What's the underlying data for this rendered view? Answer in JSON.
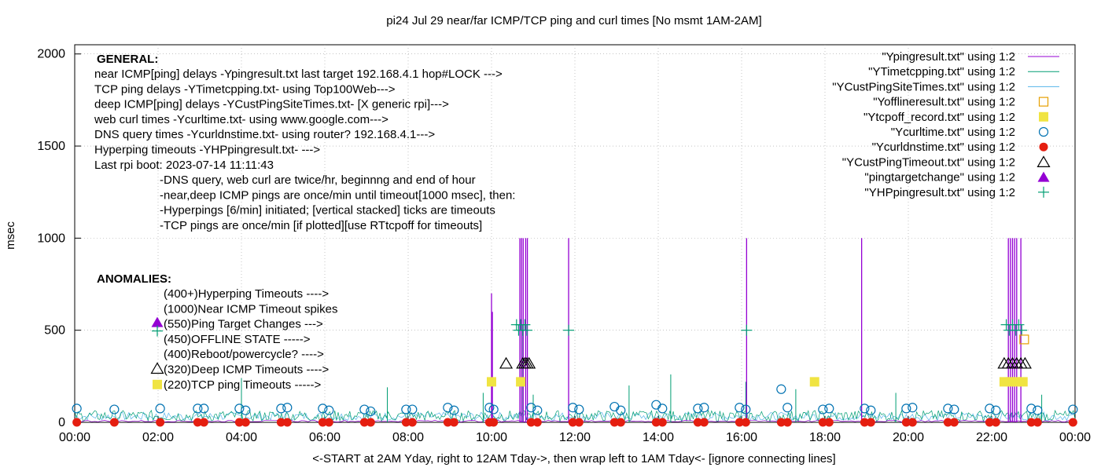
{
  "chart_data": {
    "type": "line",
    "title": "pi24 Jul 29  near/far ICMP/TCP ping and curl times [No msmt 1AM-2AM]",
    "xlabel": "<-START at 2AM Yday, right to 12AM Tday->, then wrap left to 1AM Tday<- [ignore connecting lines]",
    "ylabel": "msec",
    "xlim_hours": [
      0,
      24
    ],
    "ylim": [
      0,
      2050
    ],
    "x_ticks": [
      "00:00",
      "02:00",
      "04:00",
      "06:00",
      "08:00",
      "10:00",
      "12:00",
      "14:00",
      "16:00",
      "18:00",
      "20:00",
      "22:00",
      "00:00"
    ],
    "y_ticks": [
      "0",
      "500",
      "1000",
      "1500",
      "2000"
    ],
    "grid": true,
    "legend_placement": "top-right",
    "colors": {
      "ping": "#9400d3",
      "tcp": "#009e73",
      "cust": "#56b4e9",
      "offline": "#e69f00",
      "tcpoff": "#f0e442",
      "curl": "#0072b2",
      "dns": "#e51e10",
      "custTimeout": "#000000",
      "target": "#9400d3",
      "yhp": "#009e73"
    },
    "series": [
      {
        "name": "\"Ypingresult.txt\" using 1:2",
        "key": "ping",
        "marker": "line"
      },
      {
        "name": "\"YTimetcpping.txt\" using 1:2",
        "key": "tcp",
        "marker": "line"
      },
      {
        "name": "\"YCustPingSiteTimes.txt\" using 1:2",
        "key": "cust",
        "marker": "line"
      },
      {
        "name": "\"Yofflineresult.txt\" using 1:2",
        "key": "offline",
        "marker": "open-square"
      },
      {
        "name": "\"Ytcpoff_record.txt\" using 1:2",
        "key": "tcpoff",
        "marker": "filled-square"
      },
      {
        "name": "\"Ycurltime.txt\" using 1:2",
        "key": "curl",
        "marker": "open-circle"
      },
      {
        "name": "\"Ycurldnstime.txt\" using 1:2",
        "key": "dns",
        "marker": "filled-circle"
      },
      {
        "name": "\"YCustPingTimeout.txt\" using 1:2",
        "key": "custTimeout",
        "marker": "open-triangle"
      },
      {
        "name": "\"pingtargetchange\" using 1:2",
        "key": "target",
        "marker": "filled-triangle"
      },
      {
        "name": "\"YHPpingresult.txt\" using 1:2",
        "key": "yhp",
        "marker": "plus"
      }
    ],
    "ping_spikes": [
      {
        "x": 10.0,
        "y": 700
      },
      {
        "x": 10.02,
        "y": 600
      },
      {
        "x": 10.68,
        "y": 1000
      },
      {
        "x": 10.72,
        "y": 1000
      },
      {
        "x": 10.76,
        "y": 1000
      },
      {
        "x": 10.82,
        "y": 1000
      },
      {
        "x": 10.86,
        "y": 1000
      },
      {
        "x": 11.85,
        "y": 1000
      },
      {
        "x": 16.12,
        "y": 1000
      },
      {
        "x": 18.88,
        "y": 1000
      },
      {
        "x": 22.4,
        "y": 1000
      },
      {
        "x": 22.45,
        "y": 1000
      },
      {
        "x": 22.5,
        "y": 1000
      },
      {
        "x": 22.55,
        "y": 1000
      },
      {
        "x": 22.6,
        "y": 1000
      },
      {
        "x": 22.7,
        "y": 1000
      }
    ],
    "tcp_spikes": [
      {
        "x": 4.0,
        "y": 240
      },
      {
        "x": 7.5,
        "y": 190
      },
      {
        "x": 9.8,
        "y": 160
      },
      {
        "x": 10.75,
        "y": 500
      },
      {
        "x": 11.0,
        "y": 150
      },
      {
        "x": 13.3,
        "y": 200
      },
      {
        "x": 14.3,
        "y": 260
      },
      {
        "x": 16.1,
        "y": 220
      },
      {
        "x": 17.3,
        "y": 180
      },
      {
        "x": 19.7,
        "y": 160
      },
      {
        "x": 22.5,
        "y": 280
      },
      {
        "x": 23.2,
        "y": 150
      }
    ],
    "yhp_points": [
      {
        "x": 10.6,
        "y": 530
      },
      {
        "x": 10.65,
        "y": 500
      },
      {
        "x": 10.7,
        "y": 530
      },
      {
        "x": 10.75,
        "y": 500
      },
      {
        "x": 10.8,
        "y": 530
      },
      {
        "x": 10.85,
        "y": 500
      },
      {
        "x": 11.85,
        "y": 500
      },
      {
        "x": 16.12,
        "y": 500
      },
      {
        "x": 22.35,
        "y": 530
      },
      {
        "x": 22.42,
        "y": 500
      },
      {
        "x": 22.5,
        "y": 530
      },
      {
        "x": 22.58,
        "y": 500
      },
      {
        "x": 22.65,
        "y": 530
      },
      {
        "x": 22.72,
        "y": 500
      }
    ],
    "tcpoff_points": [
      {
        "x": 10.0,
        "y": 220
      },
      {
        "x": 10.7,
        "y": 220
      },
      {
        "x": 17.75,
        "y": 220
      },
      {
        "x": 22.3,
        "y": 220
      },
      {
        "x": 22.45,
        "y": 220
      },
      {
        "x": 22.6,
        "y": 220
      },
      {
        "x": 22.75,
        "y": 220
      }
    ],
    "offline_points": [
      {
        "x": 22.78,
        "y": 450
      }
    ],
    "custTimeout_points": [
      {
        "x": 10.35,
        "y": 320
      },
      {
        "x": 10.75,
        "y": 320
      },
      {
        "x": 10.8,
        "y": 320
      },
      {
        "x": 10.85,
        "y": 320
      },
      {
        "x": 10.9,
        "y": 320
      },
      {
        "x": 22.3,
        "y": 320
      },
      {
        "x": 22.4,
        "y": 320
      },
      {
        "x": 22.5,
        "y": 320
      },
      {
        "x": 22.6,
        "y": 320
      },
      {
        "x": 22.7,
        "y": 320
      },
      {
        "x": 22.8,
        "y": 320
      }
    ],
    "curl_points": [
      {
        "x": 0.05,
        "y": 75
      },
      {
        "x": 0.95,
        "y": 70
      },
      {
        "x": 2.05,
        "y": 75
      },
      {
        "x": 2.95,
        "y": 75
      },
      {
        "x": 3.1,
        "y": 75
      },
      {
        "x": 3.95,
        "y": 75
      },
      {
        "x": 4.1,
        "y": 65
      },
      {
        "x": 4.95,
        "y": 75
      },
      {
        "x": 5.1,
        "y": 80
      },
      {
        "x": 5.95,
        "y": 75
      },
      {
        "x": 6.1,
        "y": 65
      },
      {
        "x": 6.95,
        "y": 70
      },
      {
        "x": 7.1,
        "y": 60
      },
      {
        "x": 7.95,
        "y": 70
      },
      {
        "x": 8.1,
        "y": 70
      },
      {
        "x": 8.95,
        "y": 80
      },
      {
        "x": 9.1,
        "y": 65
      },
      {
        "x": 9.95,
        "y": 80
      },
      {
        "x": 10.05,
        "y": 70
      },
      {
        "x": 10.95,
        "y": 80
      },
      {
        "x": 11.1,
        "y": 65
      },
      {
        "x": 11.95,
        "y": 80
      },
      {
        "x": 12.1,
        "y": 70
      },
      {
        "x": 12.95,
        "y": 85
      },
      {
        "x": 13.1,
        "y": 65
      },
      {
        "x": 13.95,
        "y": 95
      },
      {
        "x": 14.1,
        "y": 75
      },
      {
        "x": 14.95,
        "y": 75
      },
      {
        "x": 15.1,
        "y": 80
      },
      {
        "x": 15.95,
        "y": 80
      },
      {
        "x": 16.1,
        "y": 70
      },
      {
        "x": 16.95,
        "y": 180
      },
      {
        "x": 17.1,
        "y": 80
      },
      {
        "x": 17.95,
        "y": 70
      },
      {
        "x": 18.1,
        "y": 75
      },
      {
        "x": 18.95,
        "y": 75
      },
      {
        "x": 19.1,
        "y": 65
      },
      {
        "x": 19.95,
        "y": 75
      },
      {
        "x": 20.1,
        "y": 80
      },
      {
        "x": 20.95,
        "y": 75
      },
      {
        "x": 21.1,
        "y": 70
      },
      {
        "x": 21.95,
        "y": 75
      },
      {
        "x": 22.1,
        "y": 65
      },
      {
        "x": 22.95,
        "y": 75
      },
      {
        "x": 23.1,
        "y": 65
      },
      {
        "x": 23.95,
        "y": 70
      }
    ],
    "dns_points": [
      {
        "x": 0.05,
        "y": 0
      },
      {
        "x": 0.95,
        "y": 0
      },
      {
        "x": 2.05,
        "y": 0
      },
      {
        "x": 2.95,
        "y": 0
      },
      {
        "x": 3.1,
        "y": 0
      },
      {
        "x": 3.95,
        "y": 0
      },
      {
        "x": 4.1,
        "y": 0
      },
      {
        "x": 4.95,
        "y": 0
      },
      {
        "x": 5.1,
        "y": 0
      },
      {
        "x": 5.95,
        "y": 0
      },
      {
        "x": 6.1,
        "y": 0
      },
      {
        "x": 6.95,
        "y": 0
      },
      {
        "x": 7.1,
        "y": 0
      },
      {
        "x": 7.95,
        "y": 0
      },
      {
        "x": 8.1,
        "y": 0
      },
      {
        "x": 8.95,
        "y": 0
      },
      {
        "x": 9.1,
        "y": 0
      },
      {
        "x": 9.95,
        "y": 0
      },
      {
        "x": 10.05,
        "y": 0
      },
      {
        "x": 10.95,
        "y": 0
      },
      {
        "x": 11.1,
        "y": 0
      },
      {
        "x": 11.95,
        "y": 0
      },
      {
        "x": 12.1,
        "y": 0
      },
      {
        "x": 12.95,
        "y": 0
      },
      {
        "x": 13.1,
        "y": 0
      },
      {
        "x": 13.95,
        "y": 0
      },
      {
        "x": 14.1,
        "y": 0
      },
      {
        "x": 14.95,
        "y": 0
      },
      {
        "x": 15.1,
        "y": 0
      },
      {
        "x": 15.95,
        "y": 0
      },
      {
        "x": 16.1,
        "y": 0
      },
      {
        "x": 16.95,
        "y": 0
      },
      {
        "x": 17.1,
        "y": 0
      },
      {
        "x": 17.95,
        "y": 0
      },
      {
        "x": 18.1,
        "y": 0
      },
      {
        "x": 18.95,
        "y": 0
      },
      {
        "x": 19.1,
        "y": 0
      },
      {
        "x": 19.95,
        "y": 0
      },
      {
        "x": 20.1,
        "y": 0
      },
      {
        "x": 20.95,
        "y": 0
      },
      {
        "x": 21.1,
        "y": 0
      },
      {
        "x": 21.95,
        "y": 0
      },
      {
        "x": 22.1,
        "y": 0
      },
      {
        "x": 22.95,
        "y": 0
      },
      {
        "x": 23.1,
        "y": 0
      },
      {
        "x": 23.95,
        "y": 0
      }
    ],
    "general_notes": {
      "heading": "GENERAL:",
      "lines": [
        "near ICMP[ping] delays -Ypingresult.txt last target 192.168.4.1 hop#LOCK --->",
        "TCP ping delays -YTimetcpping.txt- using Top100Web--->",
        "deep ICMP[ping] delays -YCustPingSiteTimes.txt- [X generic rpi]--->",
        "web curl times -Ycurltime.txt- using www.google.com--->",
        "DNS query times -Ycurldnstime.txt- using router? 192.168.4.1--->",
        "Hyperping timeouts -YHPpingresult.txt- --->",
        "Last rpi boot: 2023-07-14 11:11:43"
      ],
      "sub_lines": [
        "-DNS query, web curl are twice/hr, beginnng and end of hour",
        "-near,deep ICMP pings are once/min until timeout[1000 msec], then:",
        "  -Hyperpings [6/min] initiated; [vertical stacked] ticks are timeouts",
        "-TCP pings are once/min [if plotted][use RTtcpoff for timeouts]"
      ]
    },
    "anomalies": {
      "heading": "ANOMALIES:",
      "items": [
        {
          "text": "(400+)Hyperping Timeouts ---->",
          "marker": "none",
          "y": 400
        },
        {
          "text": "(1000)Near ICMP Timeout spikes",
          "marker": "none",
          "y": 1000
        },
        {
          "text": "(550)Ping Target Changes --->",
          "marker": "filled-triangle+plus",
          "y": 550
        },
        {
          "text": "(450)OFFLINE STATE ----->",
          "marker": "none",
          "y": 450
        },
        {
          "text": "(400)Reboot/powercycle? ---->",
          "marker": "none",
          "y": 400
        },
        {
          "text": "(320)Deep ICMP Timeouts ---->",
          "marker": "open-triangle",
          "y": 320
        },
        {
          "text": "(220)TCP ping Timeouts ----->",
          "marker": "filled-square",
          "y": 220
        }
      ]
    }
  }
}
